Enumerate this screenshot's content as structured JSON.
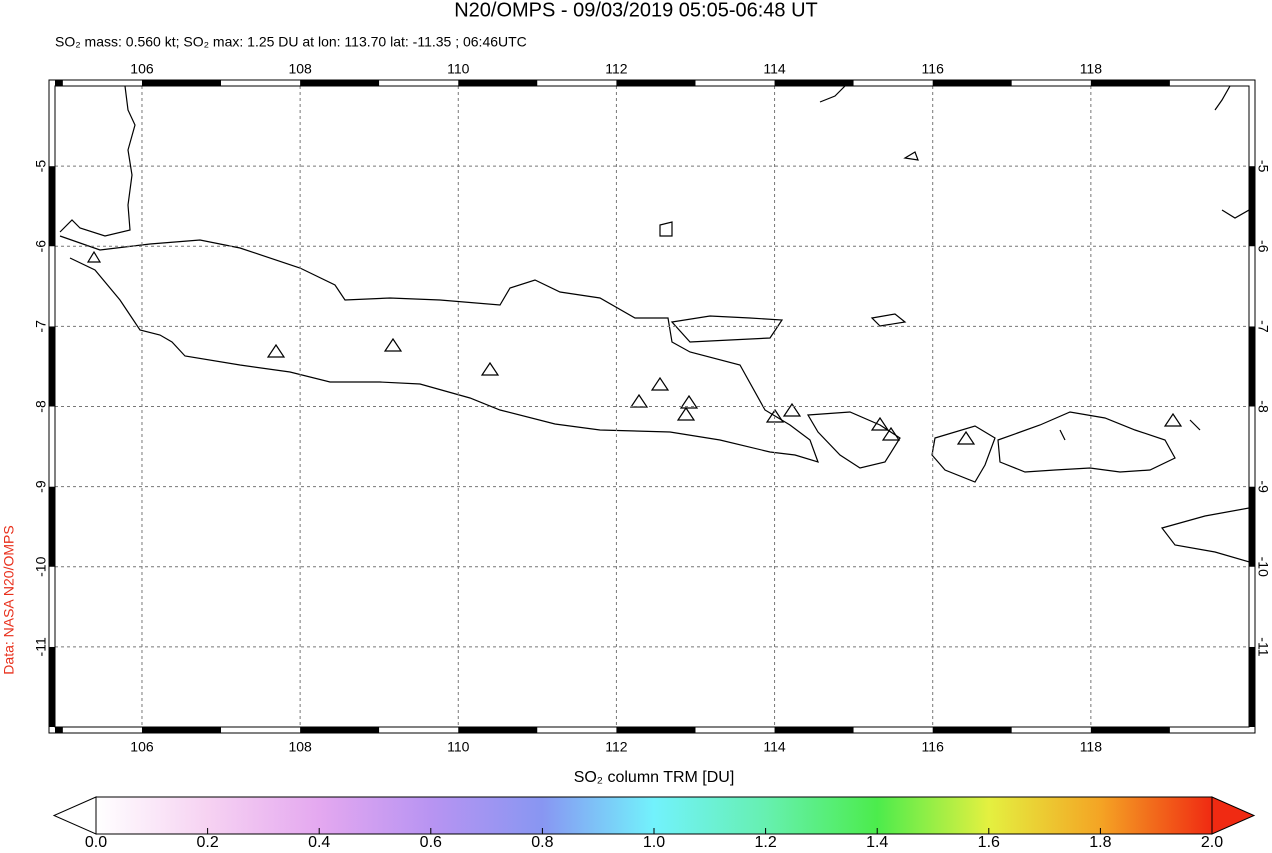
{
  "chart_data": {
    "type": "map",
    "title": "N20/OMPS - 09/03/2019 05:05-06:48 UT",
    "subtitle": "SO₂ mass: 0.560 kt; SO₂ max: 1.25 DU at lon: 113.70 lat: -11.35 ; 06:46UTC",
    "xlim": [
      104.9,
      120.0
    ],
    "ylim": [
      -12.0,
      -4.0
    ],
    "xticks": [
      106,
      108,
      110,
      112,
      114,
      116,
      118
    ],
    "yticks": [
      -5,
      -6,
      -7,
      -8,
      -9,
      -10,
      -11
    ],
    "grid": true,
    "colorbar": {
      "label": "SO₂ column TRM [DU]",
      "clim": [
        0,
        2
      ],
      "ticks": [
        {
          "value": 0,
          "label": "0.0"
        },
        0.2,
        0.4,
        0.6,
        0.8,
        {
          "value": 1,
          "label": "1.0"
        },
        1.2,
        1.4,
        1.6,
        1.8,
        {
          "value": 2,
          "label": "2.0"
        }
      ],
      "colormap": [
        "#ffffff",
        "#f6d2f2",
        "#e4a8f0",
        "#b894f2",
        "#8896f2",
        "#72f2fc",
        "#66f0b0",
        "#4cec4c",
        "#e4f040",
        "#f4a424",
        "#f02a12"
      ]
    },
    "credit": "Data: NASA N20/OMPS"
  }
}
